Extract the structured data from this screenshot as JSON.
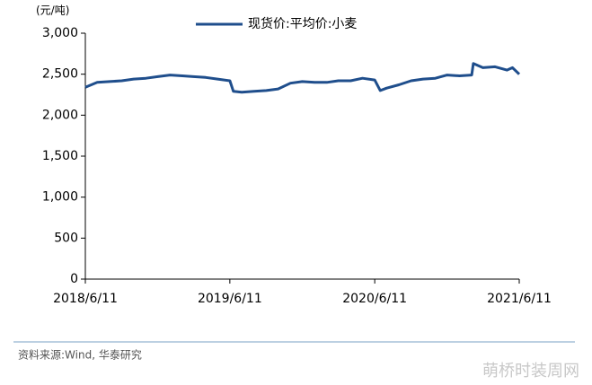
{
  "chart_data": {
    "type": "line",
    "unit_label": "(元/吨)",
    "source": "资料来源:Wind, 华泰研究",
    "watermark": "萌桥时装周网",
    "legend_position": "top",
    "x": [
      "2018/6/11",
      "2018/7/11",
      "2018/8/11",
      "2018/9/11",
      "2018/10/11",
      "2018/11/11",
      "2018/12/11",
      "2019/1/11",
      "2019/2/11",
      "2019/3/11",
      "2019/4/11",
      "2019/5/11",
      "2019/6/11",
      "2019/6/20",
      "2019/7/11",
      "2019/8/11",
      "2019/9/11",
      "2019/10/11",
      "2019/11/11",
      "2019/12/11",
      "2020/1/11",
      "2020/2/11",
      "2020/3/11",
      "2020/4/11",
      "2020/5/11",
      "2020/6/11",
      "2020/6/25",
      "2020/7/11",
      "2020/8/11",
      "2020/9/11",
      "2020/10/11",
      "2020/11/11",
      "2020/12/11",
      "2021/1/11",
      "2021/2/11",
      "2021/2/15",
      "2021/3/11",
      "2021/4/11",
      "2021/5/11",
      "2021/5/25",
      "2021/6/11"
    ],
    "series": [
      {
        "name": "现货价:平均价:小麦",
        "color": "#1f4e8c",
        "values": [
          2340,
          2400,
          2410,
          2420,
          2440,
          2450,
          2470,
          2490,
          2480,
          2470,
          2460,
          2440,
          2420,
          2290,
          2280,
          2290,
          2300,
          2320,
          2390,
          2410,
          2400,
          2400,
          2420,
          2420,
          2450,
          2430,
          2300,
          2330,
          2370,
          2420,
          2440,
          2450,
          2490,
          2480,
          2490,
          2630,
          2580,
          2590,
          2550,
          2580,
          2500
        ]
      }
    ],
    "xlim": [
      "2018/6/11",
      "2021/6/11"
    ],
    "xticks": [
      "2018/6/11",
      "2019/6/11",
      "2020/6/11",
      "2021/6/11"
    ],
    "ylim": [
      0,
      3000
    ],
    "yticks": [
      0,
      500,
      {
        "value": 1000,
        "label": "1,000"
      },
      {
        "value": 1500,
        "label": "1,500"
      },
      {
        "value": 2000,
        "label": "2,000"
      },
      {
        "value": 2500,
        "label": "2,500"
      },
      {
        "value": 3000,
        "label": "3,000"
      }
    ],
    "grid": false
  }
}
